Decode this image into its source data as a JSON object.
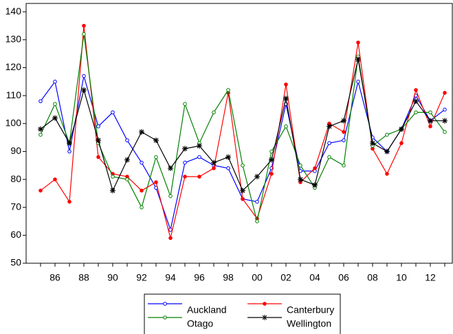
{
  "chart_data": {
    "type": "line",
    "categories": [
      null,
      "86",
      null,
      "88",
      null,
      "90",
      null,
      "92",
      null,
      "94",
      null,
      "96",
      null,
      "98",
      null,
      "00",
      null,
      "02",
      null,
      "04",
      null,
      "06",
      null,
      "08",
      null,
      "10",
      null,
      "12",
      null
    ],
    "ylim": [
      50,
      143
    ],
    "yticks": [
      50,
      60,
      70,
      80,
      90,
      100,
      110,
      120,
      130,
      140
    ],
    "series": [
      {
        "name": "Auckland",
        "color": "#0000ff",
        "marker": "open-circle",
        "values": [
          108,
          115,
          90,
          117,
          99,
          104,
          94,
          86,
          77,
          62,
          86,
          88,
          85,
          84,
          73,
          72,
          84,
          107,
          83,
          83,
          93,
          94,
          115,
          95,
          90,
          98,
          110,
          101,
          105
        ]
      },
      {
        "name": "Canterbury",
        "color": "#ff0000",
        "marker": "filled-circle",
        "values": [
          76,
          80,
          72,
          135,
          88,
          82,
          81,
          76,
          79,
          59,
          81,
          81,
          84,
          111,
          73,
          66,
          82,
          114,
          79,
          84,
          100,
          97,
          129,
          91,
          82,
          93,
          112,
          99,
          111
        ]
      },
      {
        "name": "Otago",
        "color": "#008000",
        "marker": "open-circle",
        "values": [
          96,
          107,
          93,
          132,
          93,
          81,
          80,
          70,
          88,
          74,
          107,
          93,
          104,
          112,
          85,
          65,
          90,
          99,
          85,
          77,
          88,
          85,
          124,
          92,
          96,
          98,
          104,
          104,
          97
        ]
      },
      {
        "name": "Wellington",
        "color": "#000000",
        "marker": "asterisk",
        "values": [
          98,
          102,
          93,
          112,
          94,
          76,
          87,
          97,
          94,
          84,
          91,
          92,
          86,
          88,
          76,
          81,
          87,
          109,
          80,
          78,
          99,
          101,
          123,
          93,
          90,
          98,
          108,
          101,
          101
        ]
      }
    ]
  }
}
